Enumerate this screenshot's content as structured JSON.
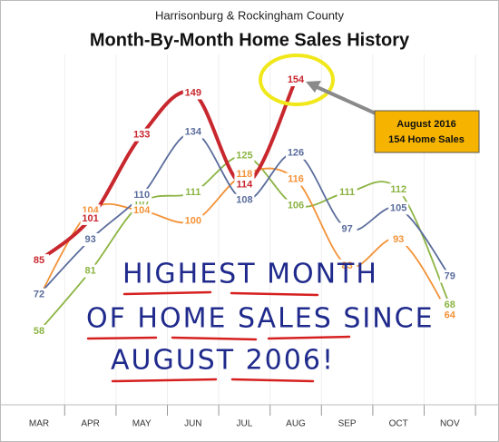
{
  "chart_data": {
    "type": "line",
    "subtitle": "Harrisonburg & Rockingham County",
    "title": "Month-By-Month Home Sales History",
    "categories": [
      "MAR",
      "APR",
      "MAY",
      "JUN",
      "JUL",
      "AUG",
      "SEP",
      "OCT",
      "NOV"
    ],
    "series": [
      {
        "color": "#8cb443",
        "values": [
          58,
          81,
          107,
          111,
          125,
          106,
          111,
          112,
          68
        ]
      },
      {
        "color": "#f39237",
        "values": [
          71,
          104,
          104,
          100,
          118,
          116,
          83,
          93,
          64
        ]
      },
      {
        "color": "#5a6c9c",
        "values": [
          72,
          93,
          110,
          134,
          108,
          126,
          97,
          105,
          79
        ]
      },
      {
        "color": "#c8272e",
        "values": [
          85,
          101,
          133,
          149,
          114,
          154,
          null,
          null,
          null
        ]
      }
    ],
    "annotations": {
      "callout": [
        "August 2016",
        "154 Home Sales"
      ],
      "handwriting": [
        "HIGHEST MONTH",
        "OF HOME SALES SINCE",
        "AUGUST 2006!"
      ]
    }
  }
}
